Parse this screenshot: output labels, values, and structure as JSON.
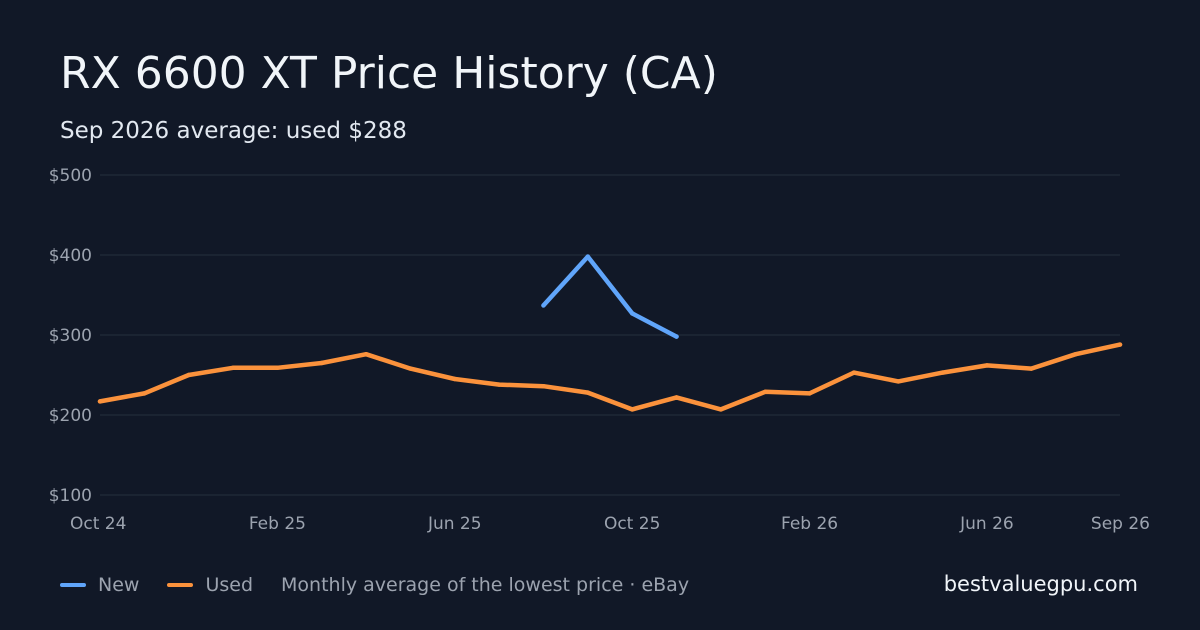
{
  "title": "RX 6600 XT Price History (CA)",
  "subtitle": "Sep 2026 average: used $288",
  "site": "bestvaluegpu.com",
  "colors": {
    "background": "#111827",
    "new": "#60a5fa",
    "used": "#fb923c",
    "grid": "#1f2937"
  },
  "legend": {
    "new_label": "New",
    "used_label": "Used",
    "note": "Monthly average of the lowest price · eBay"
  },
  "chart_data": {
    "type": "line",
    "title": "RX 6600 XT Price History (CA)",
    "ylim": [
      100,
      500
    ],
    "y_ticks": [
      100,
      200,
      300,
      400,
      500
    ],
    "y_tick_labels": [
      "$100",
      "$200",
      "$300",
      "$400",
      "$500"
    ],
    "x_ticks": [
      "Oct 24",
      "Feb 25",
      "Jun 25",
      "Oct 25",
      "Feb 26",
      "Jun 26",
      "Sep 26"
    ],
    "x_tick_months": [
      "2024-10",
      "2025-02",
      "2025-06",
      "2025-10",
      "2026-02",
      "2026-06",
      "2026-09"
    ],
    "grid": true,
    "legend_position": "bottom-left",
    "series": [
      {
        "name": "New",
        "color": "#60a5fa",
        "points": [
          {
            "x": "2025-08",
            "y": 337
          },
          {
            "x": "2025-09",
            "y": 398
          },
          {
            "x": "2025-10",
            "y": 327
          },
          {
            "x": "2025-11",
            "y": 298
          }
        ]
      },
      {
        "name": "Used",
        "color": "#fb923c",
        "points": [
          {
            "x": "2024-10",
            "y": 217
          },
          {
            "x": "2024-11",
            "y": 227
          },
          {
            "x": "2024-12",
            "y": 250
          },
          {
            "x": "2025-01",
            "y": 259
          },
          {
            "x": "2025-02",
            "y": 259
          },
          {
            "x": "2025-03",
            "y": 265
          },
          {
            "x": "2025-04",
            "y": 276
          },
          {
            "x": "2025-05",
            "y": 258
          },
          {
            "x": "2025-06",
            "y": 245
          },
          {
            "x": "2025-07",
            "y": 238
          },
          {
            "x": "2025-08",
            "y": 236
          },
          {
            "x": "2025-09",
            "y": 228
          },
          {
            "x": "2025-10",
            "y": 207
          },
          {
            "x": "2025-11",
            "y": 222
          },
          {
            "x": "2025-12",
            "y": 207
          },
          {
            "x": "2026-01",
            "y": 229
          },
          {
            "x": "2026-02",
            "y": 227
          },
          {
            "x": "2026-03",
            "y": 253
          },
          {
            "x": "2026-04",
            "y": 242
          },
          {
            "x": "2026-05",
            "y": 253
          },
          {
            "x": "2026-06",
            "y": 262
          },
          {
            "x": "2026-07",
            "y": 258
          },
          {
            "x": "2026-08",
            "y": 276
          },
          {
            "x": "2026-09",
            "y": 288
          }
        ]
      }
    ]
  }
}
